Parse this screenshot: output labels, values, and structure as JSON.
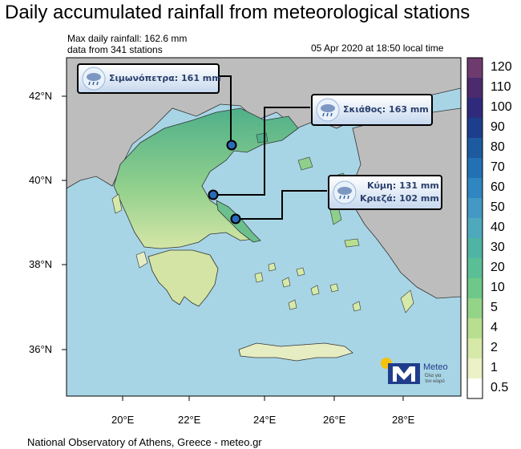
{
  "title": "Daily accumulated rainfall from meteorological stations",
  "info": {
    "max_rainfall": "Max daily rainfall: 162.6 mm",
    "stations": "data from 341 stations"
  },
  "timestamp": "05 Apr 2020 at 18:50 local time",
  "footer": "National Observatory of Athens, Greece - meteo.gr",
  "logo": {
    "name": "Meteo",
    "tagline_1": "Όλα για",
    "tagline_2": "τον καιρό",
    "icon": "meteo-m-sun-logo"
  },
  "axes": {
    "lon_ticks": [
      "20°E",
      "22°E",
      "24°E",
      "26°E",
      "28°E"
    ],
    "lat_ticks": [
      "42°N",
      "40°N",
      "38°N",
      "36°N"
    ]
  },
  "callouts": [
    {
      "label": "Σιμωνόπετρα: 161 mm",
      "icon": "rain-cloud-icon"
    },
    {
      "label": "Σκιάθος: 163 mm",
      "icon": "rain-cloud-icon"
    },
    {
      "label_1": "Κύμη: 131 mm",
      "label_2": "Κριεζά: 102 mm",
      "icon": "rain-cloud-icon"
    }
  ],
  "colorbar": {
    "labels": [
      "120",
      "110",
      "100",
      "90",
      "80",
      "70",
      "60",
      "50",
      "40",
      "30",
      "20",
      "10",
      "5",
      "4",
      "2",
      "1",
      "0.5"
    ],
    "colors": [
      "#6e3b6e",
      "#4b2a6e",
      "#2f2a7c",
      "#1d3e8c",
      "#1d5aa0",
      "#2271b4",
      "#2f86c0",
      "#4399c4",
      "#4fa9bd",
      "#4fb4a4",
      "#5bbf96",
      "#6dc88a",
      "#94d488",
      "#b8df90",
      "#d6e9a8",
      "#ecf1c6",
      "#ffffff"
    ]
  },
  "colors": {
    "sea": "#a8d5e5",
    "land_outside": "#bdbdbd",
    "land_greece": "#6cc08d"
  }
}
